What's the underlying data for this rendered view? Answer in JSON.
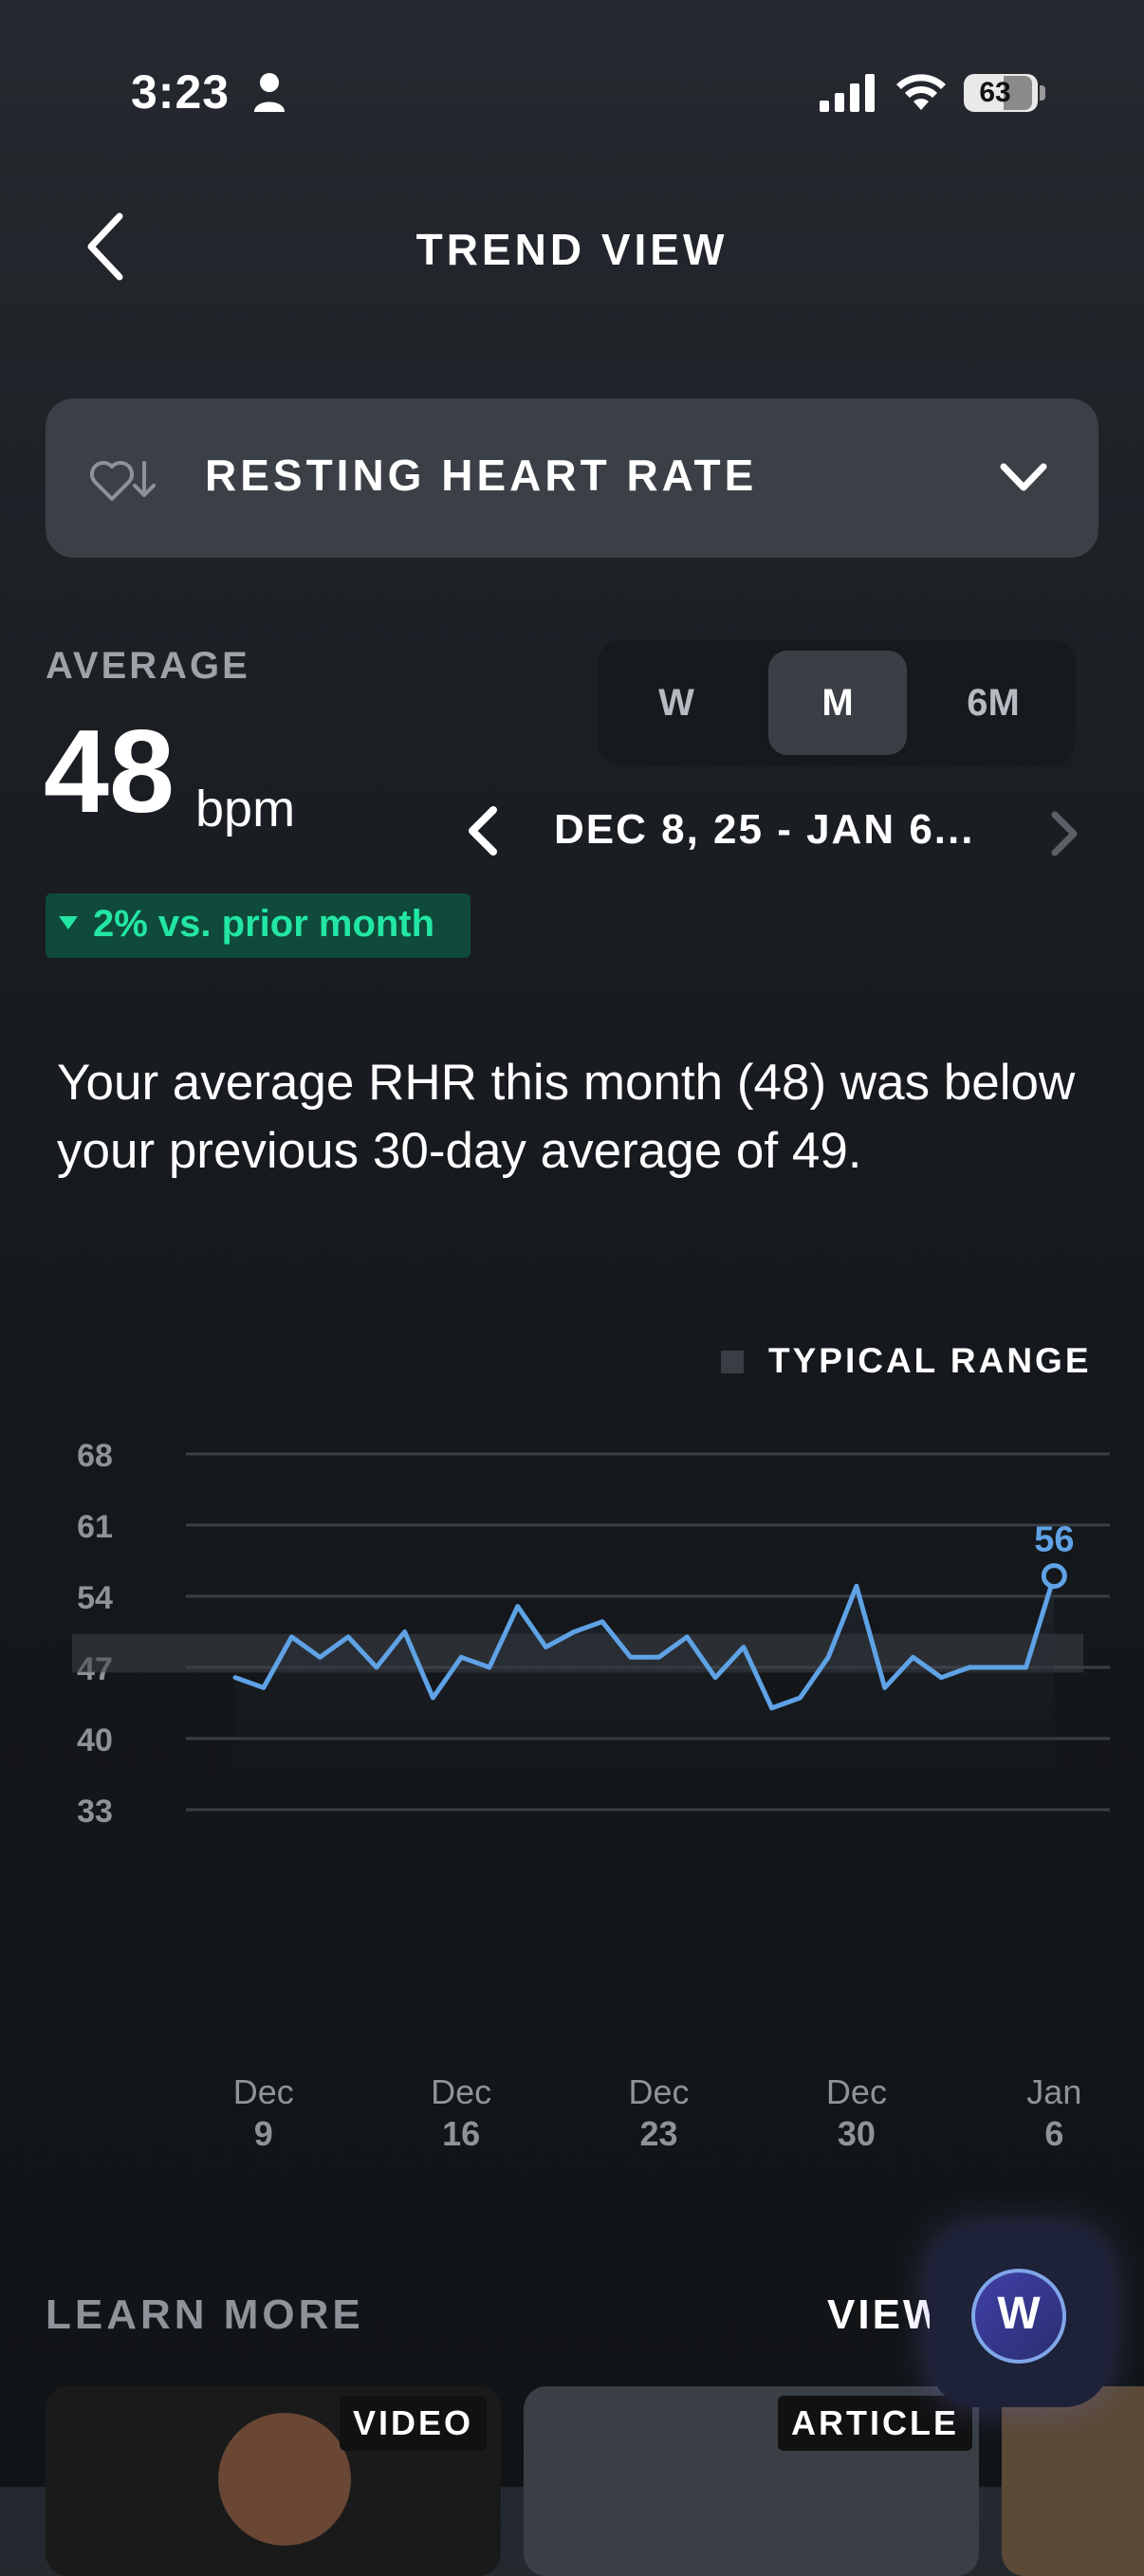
{
  "status_bar": {
    "time": "3:23",
    "battery": "63"
  },
  "header": {
    "title": "TREND VIEW"
  },
  "metric_selector": {
    "label": "RESTING HEART RATE"
  },
  "average": {
    "label": "AVERAGE",
    "value": "48",
    "unit": "bpm",
    "delta": "2% vs. prior month"
  },
  "period_tabs": [
    "W",
    "M",
    "6M"
  ],
  "selected_period": "M",
  "date_range": "DEC 8, 25 - JAN 6...",
  "summary": "Your average RHR this month (48) was below your previous 30-day average of 49.",
  "legend": {
    "typical_range": "TYPICAL RANGE"
  },
  "colors": {
    "line": "#5fa2e6",
    "accent_green": "#23e6a4",
    "badge_bg": "#0f4a3a"
  },
  "chart_data": {
    "type": "line",
    "y_ticks": [
      "68",
      "61",
      "54",
      "47",
      "40",
      "33"
    ],
    "ylim": [
      33,
      68
    ],
    "typical_range": [
      46.5,
      50.3
    ],
    "x_tick_labels": [
      {
        "month": "Dec",
        "day": "9"
      },
      {
        "month": "Dec",
        "day": "16"
      },
      {
        "month": "Dec",
        "day": "23"
      },
      {
        "month": "Dec",
        "day": "30"
      },
      {
        "month": "Jan",
        "day": "6"
      }
    ],
    "x_start": "Dec 8",
    "values": [
      46,
      45,
      50,
      48,
      50,
      47,
      50.5,
      44,
      48,
      47,
      53,
      49,
      50.5,
      51.5,
      48,
      48,
      50,
      46,
      49,
      43,
      44,
      48,
      55,
      45,
      48,
      46,
      47,
      47,
      47,
      56
    ],
    "last_label": "56",
    "grid": true
  },
  "learn_more": {
    "title": "LEARN MORE",
    "view_all": "VIEW",
    "badges": [
      "VIDEO",
      "ARTICLE"
    ]
  }
}
